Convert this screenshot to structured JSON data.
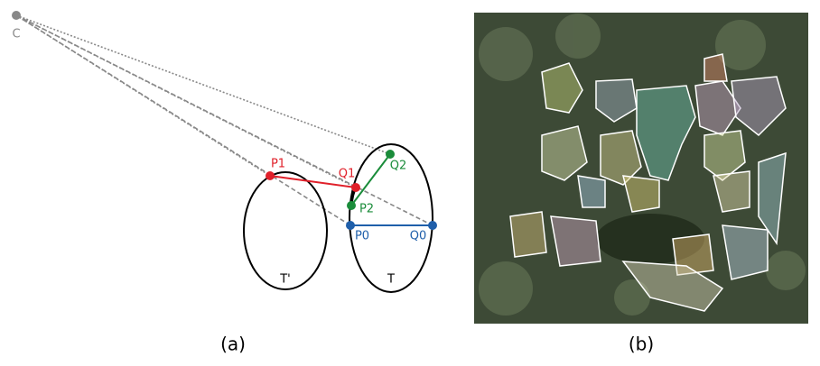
{
  "panel_a": {
    "points": [
      "C",
      "P1",
      "Q1",
      "Q2",
      "P2",
      "P0",
      "Q0"
    ],
    "regions": [
      "T'",
      "T"
    ],
    "caption": "(a)"
  },
  "panel_b": {
    "caption": "(b)"
  }
}
